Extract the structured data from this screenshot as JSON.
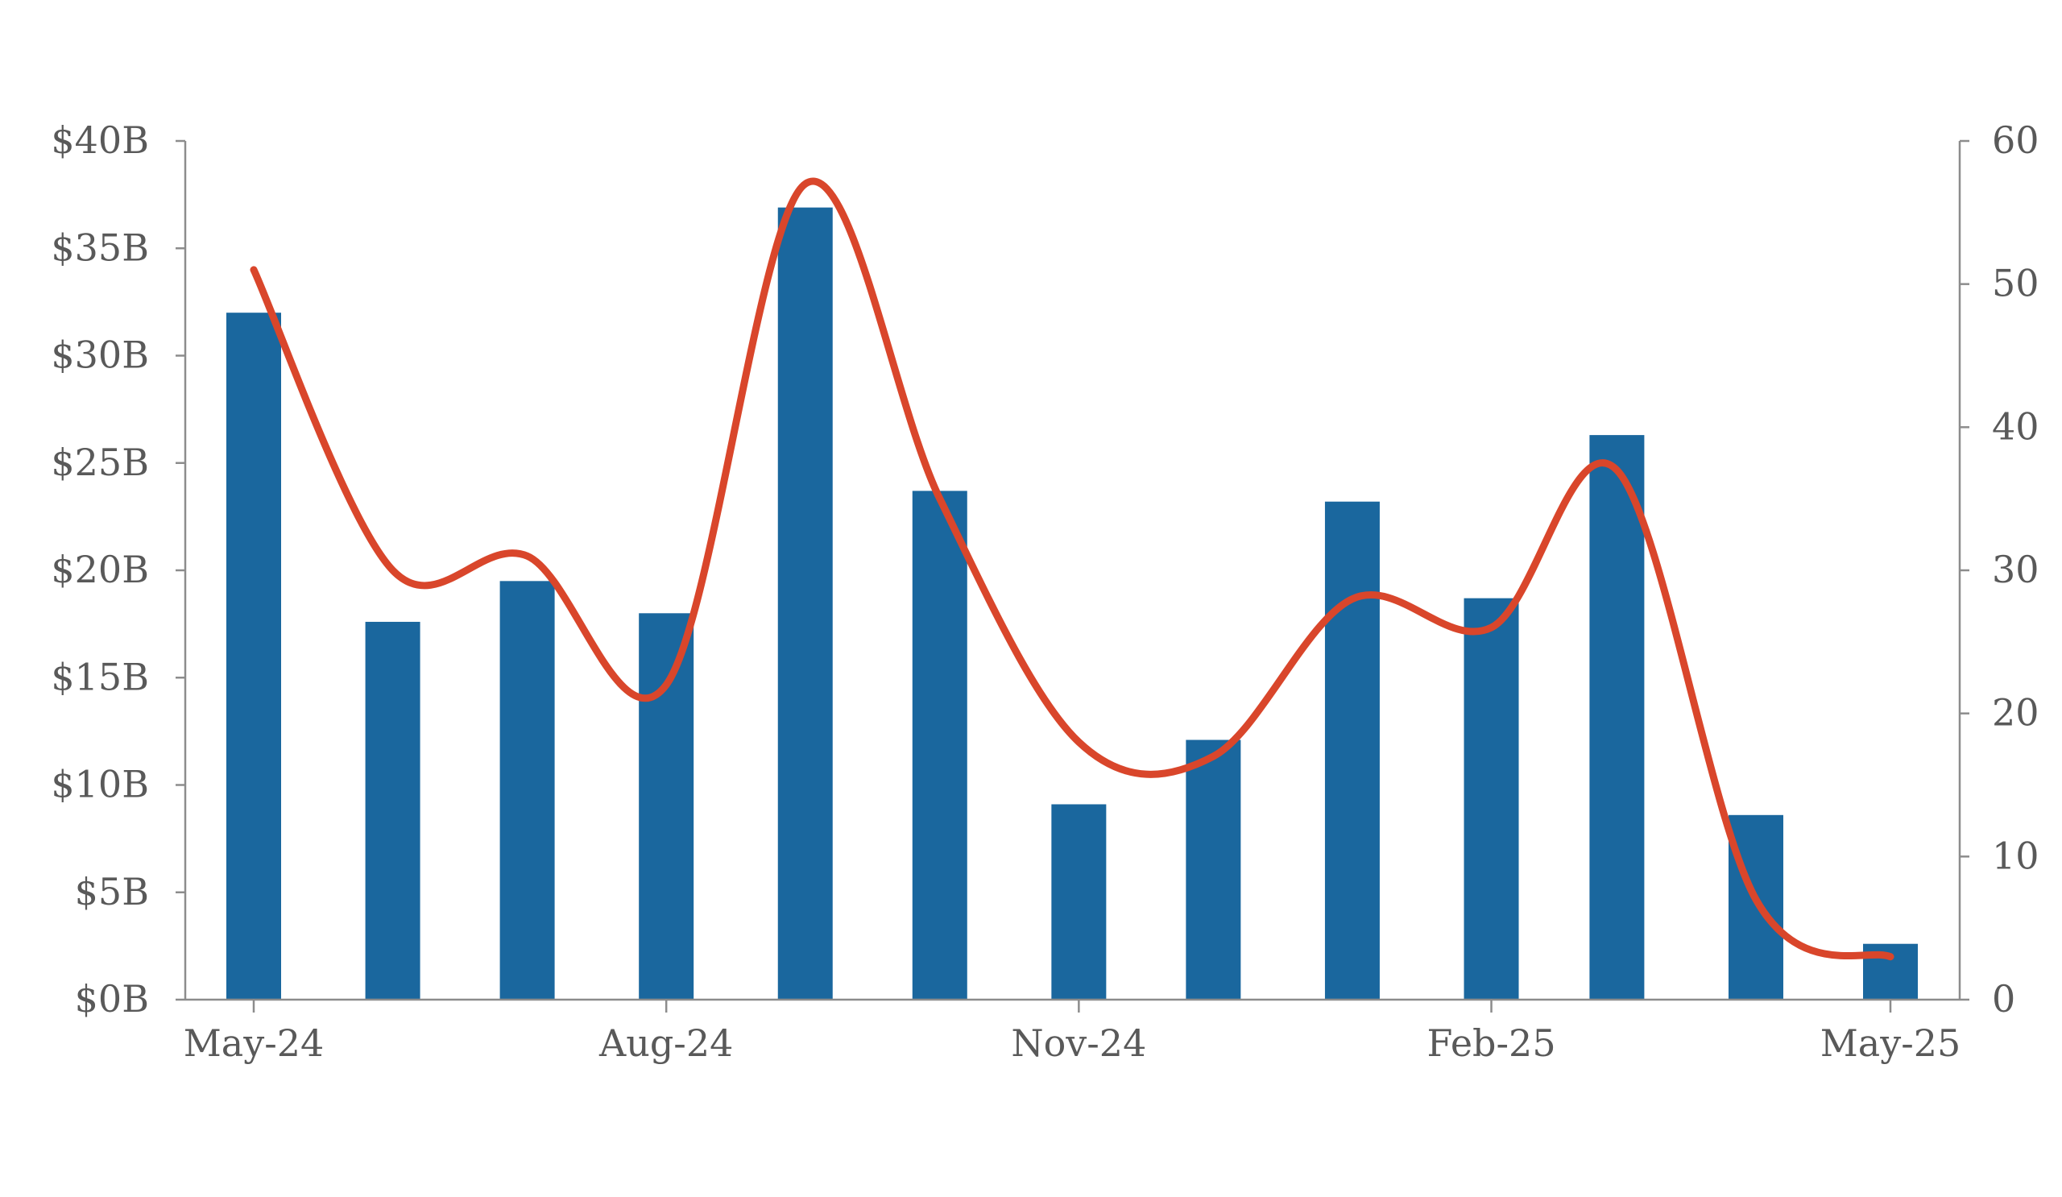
{
  "chart_data": {
    "type": "bar",
    "x": [
      "2024-05-01",
      "2024-06-01",
      "2024-07-01",
      "2024-08-01",
      "2024-09-01",
      "2024-10-01",
      "2024-11-01",
      "2024-12-01",
      "2025-01-01",
      "2025-02-01",
      "2025-03-01",
      "2025-04-01",
      "2025-05-01"
    ],
    "series": [
      {
        "type": "bar",
        "axis": "left",
        "color": "#1a679e",
        "values": [
          32,
          17.6,
          19.5,
          18,
          36.9,
          23.7,
          9.1,
          12.1,
          23.2,
          18.7,
          26.3,
          8.6,
          2.6
        ]
      },
      {
        "type": "line",
        "axis": "right",
        "smooth": true,
        "color": "#d9462b",
        "values": [
          51,
          30,
          31,
          22,
          57,
          35,
          18,
          17,
          28,
          26,
          37,
          7,
          3
        ]
      }
    ],
    "y_left": {
      "range": [
        0,
        40
      ],
      "ticks": [
        0,
        5,
        10,
        15,
        20,
        25,
        30,
        35,
        40
      ],
      "tick_labels": [
        "$0B",
        "$5B",
        "$10B",
        "$15B",
        "$20B",
        "$25B",
        "$30B",
        "$35B",
        "$40B"
      ]
    },
    "y_right": {
      "range": [
        0,
        60
      ],
      "ticks": [
        0,
        10,
        20,
        30,
        40,
        50,
        60
      ],
      "tick_labels": [
        "0",
        "10",
        "20",
        "30",
        "40",
        "50",
        "60"
      ]
    },
    "x_axis": {
      "range": [
        "2024-05-01",
        "2025-05-01"
      ],
      "tick_labels": [
        "May-24",
        "Aug-24",
        "Nov-24",
        "Feb-25",
        "May-25"
      ],
      "tick_dates": [
        "2024-05-01",
        "2024-08-01",
        "2024-11-01",
        "2025-02-01",
        "2025-05-01"
      ]
    },
    "title": "",
    "xlabel": "",
    "ylabel": "",
    "grid": false,
    "legend": "none"
  }
}
